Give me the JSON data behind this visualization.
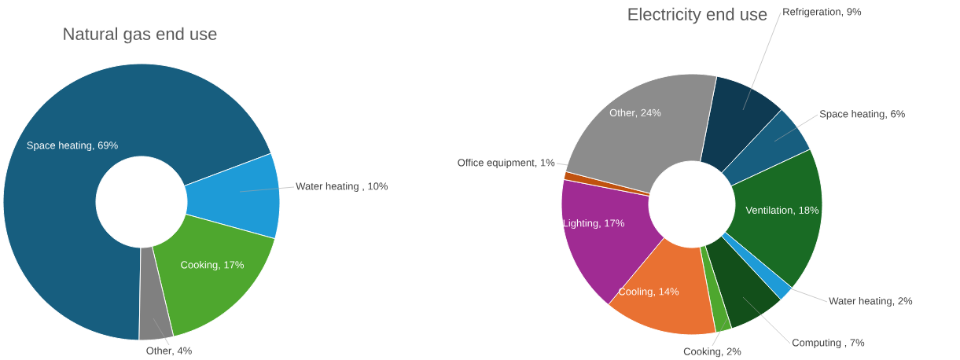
{
  "chart_data": [
    {
      "type": "donut",
      "title": "Natural gas end use",
      "value_labels": [
        ", 69%",
        " , 10%",
        ", 17%",
        ", 4%"
      ],
      "categories": [
        "Space heating",
        "Water heating",
        "Cooking",
        "Other"
      ],
      "values": [
        69,
        10,
        17,
        4
      ],
      "colors": [
        "#175e7f",
        "#1e9bd7",
        "#4ea72e",
        "#808080"
      ]
    },
    {
      "type": "donut",
      "title": "Electricity end use",
      "value_labels": [
        ", 9%",
        ", 6%",
        ", 18%",
        ", 2%",
        " , 7%",
        ", 2%",
        ", 14%",
        ", 17%",
        ", 1%",
        ", 24%"
      ],
      "categories": [
        "Refrigeration",
        "Space heating",
        "Ventilation",
        "Water heating",
        "Computing",
        "Cooking",
        "Cooling",
        "Lighting",
        "Office equipment",
        "Other"
      ],
      "values": [
        9,
        6,
        18,
        2,
        7,
        2,
        14,
        17,
        1,
        24
      ],
      "colors": [
        "#0e3a52",
        "#175e7f",
        "#196b24",
        "#1e9bd7",
        "#124f1a",
        "#4ea72e",
        "#e97132",
        "#a02b93",
        "#c0520f",
        "#8c8c8c"
      ]
    }
  ]
}
